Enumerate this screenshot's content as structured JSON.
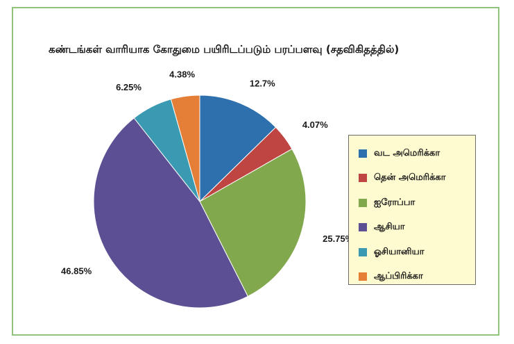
{
  "chart_data": {
    "type": "pie",
    "title": "கண்டங்கள் வாரியாக கோதுமை பயிரிடப்படும் பரப்பளவு (சதவிகிதத்தில்)",
    "legend_position": "right",
    "slices": [
      {
        "name": "வட அமெரிக்கா",
        "value": 12.7,
        "label": "12.7%",
        "color": "#2e6fad"
      },
      {
        "name": "தென் அமெரிக்கா",
        "value": 4.07,
        "label": "4.07%",
        "color": "#be4542"
      },
      {
        "name": "ஐரோப்பா",
        "value": 25.75,
        "label": "25.75%",
        "color": "#82a84e"
      },
      {
        "name": "ஆசியா",
        "value": 46.85,
        "label": "46.85%",
        "color": "#5c4f93"
      },
      {
        "name": "ஓசியானியா",
        "value": 6.25,
        "label": "6.25%",
        "color": "#3a9ab2"
      },
      {
        "name": "ஆப்பிரிக்கா",
        "value": 4.38,
        "label": "4.38%",
        "color": "#e57e36"
      }
    ]
  }
}
